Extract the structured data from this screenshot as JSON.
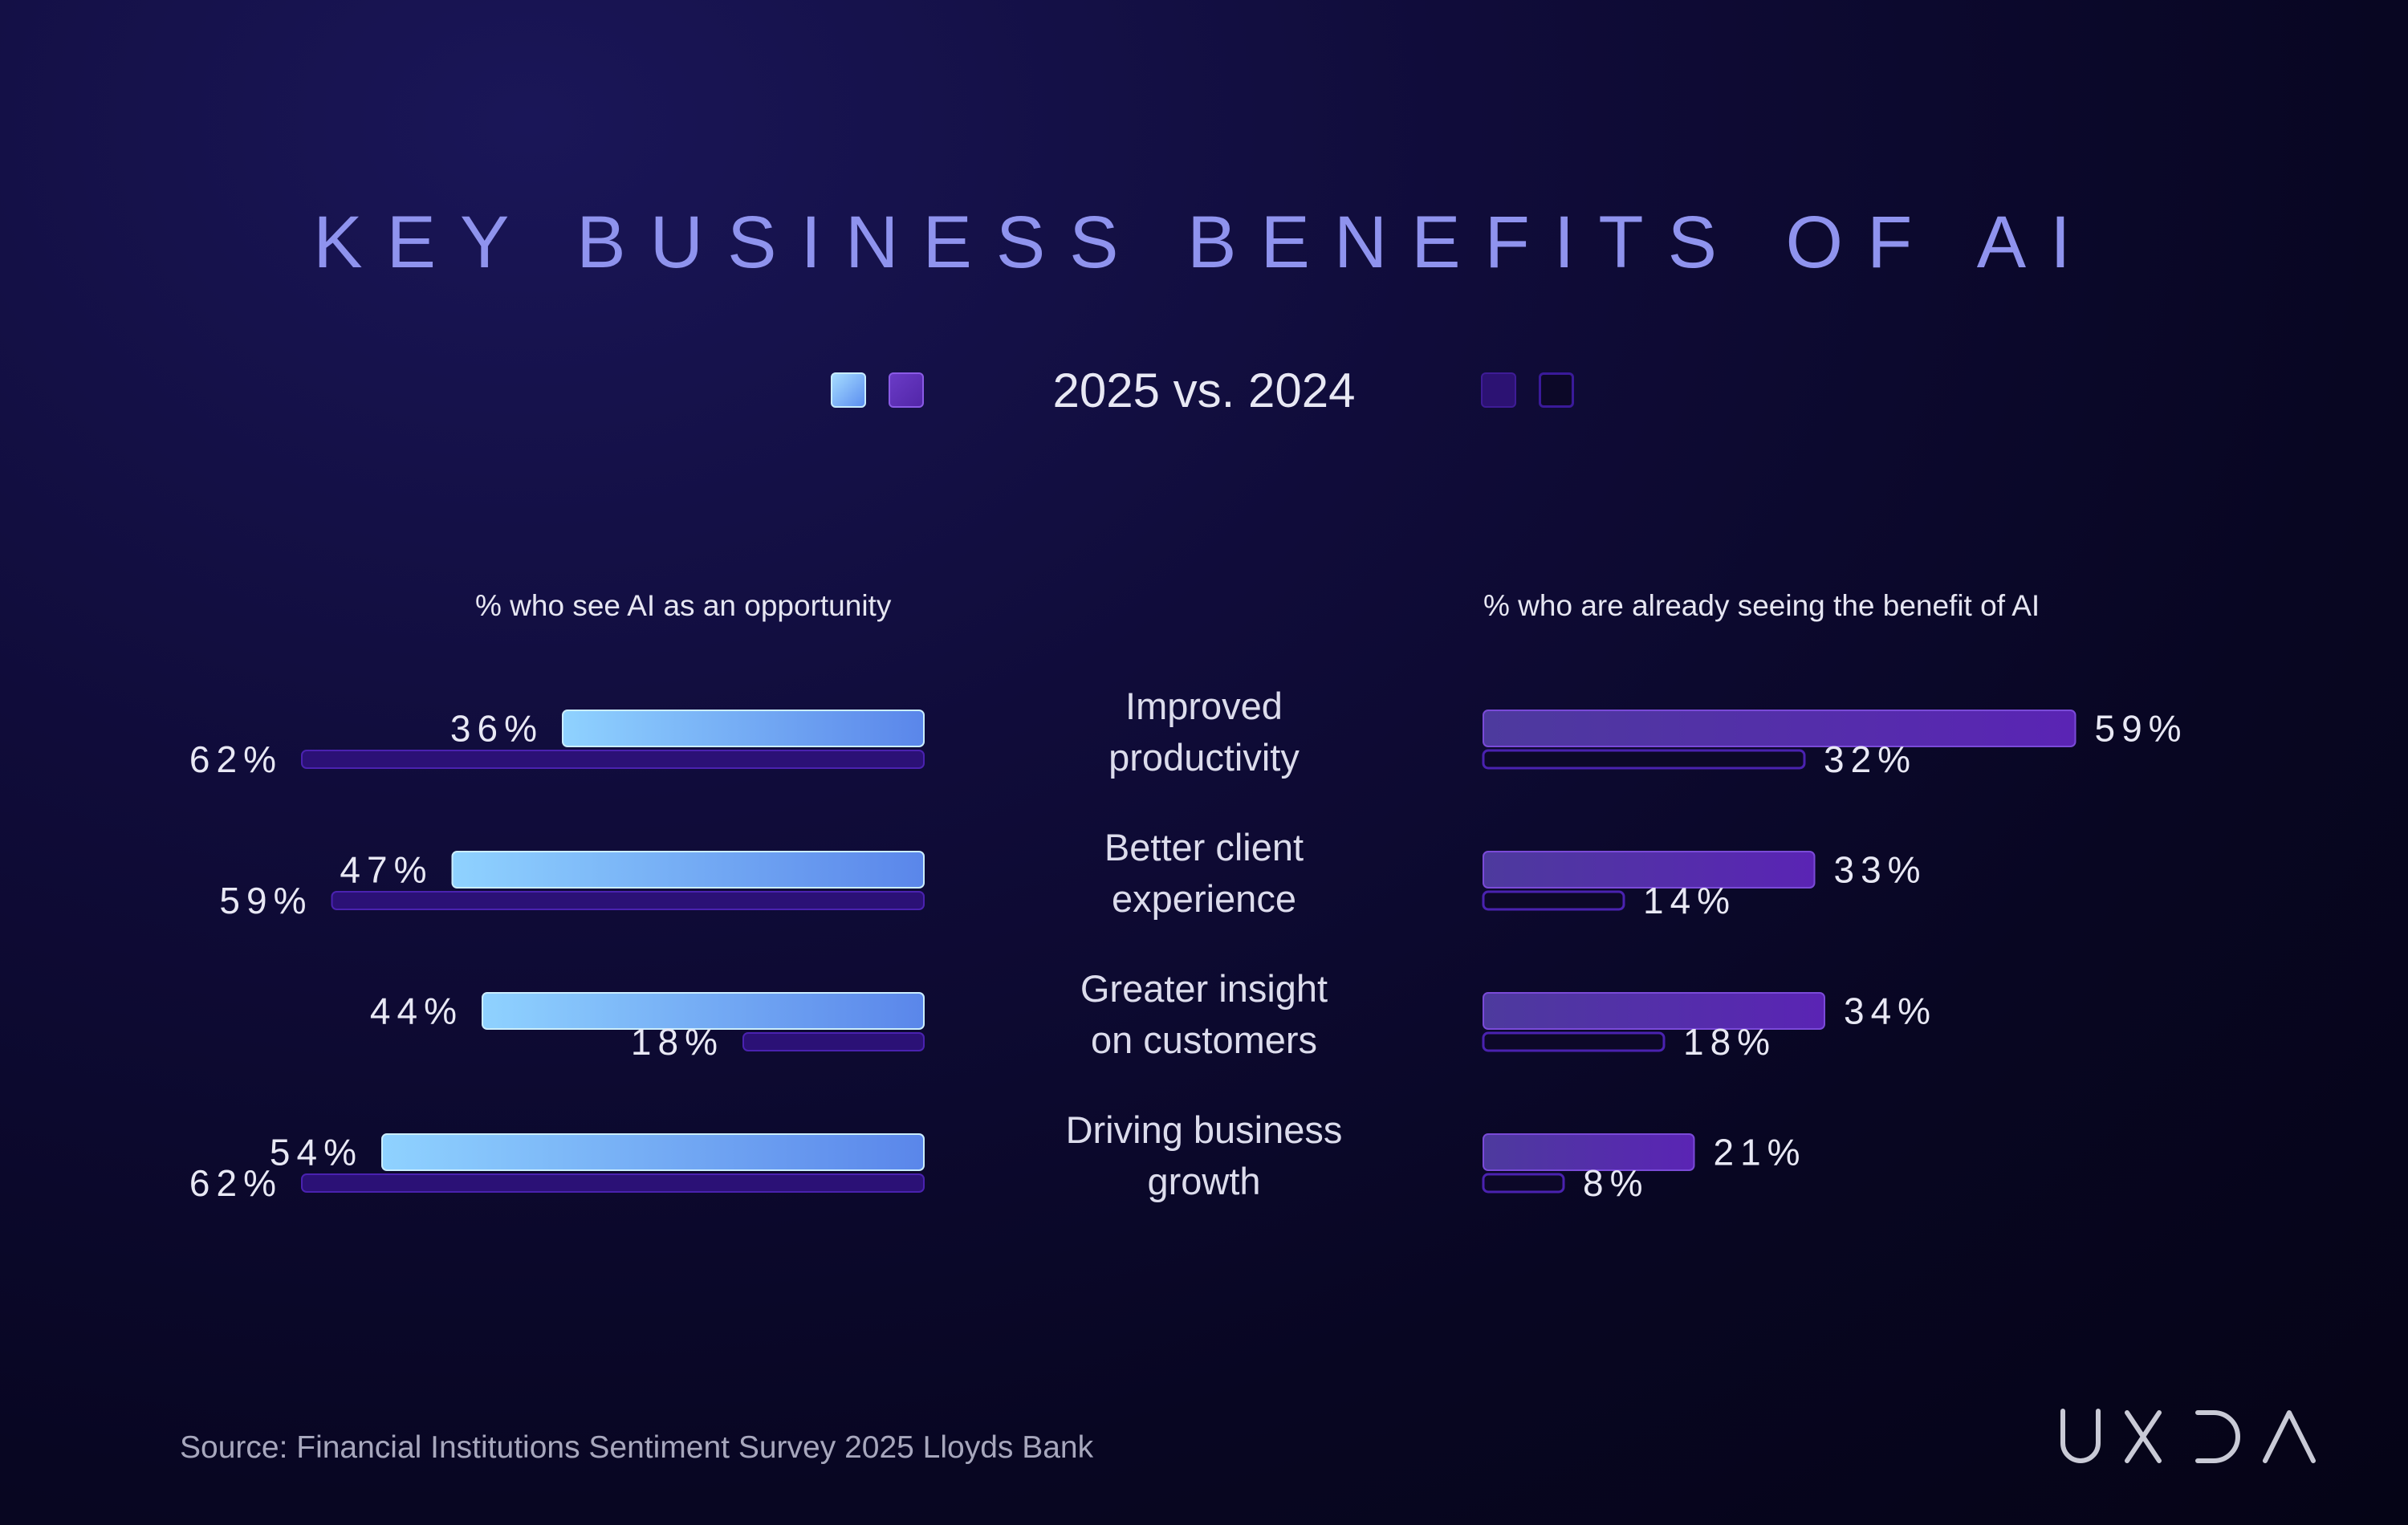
{
  "title": "KEY BUSINESS BENEFITS OF AI",
  "subtitle": "2025 vs. 2024",
  "source": "Source: Financial Institutions Sentiment Survey 2025 Lloyds Bank",
  "logo": "UXDA",
  "colors": {
    "opportunity_2025": "#6ab7f6",
    "opportunity_2024": "#3a1a8a",
    "benefit_2025": "#5a2bb3",
    "benefit_2024": "#2a0f6a"
  },
  "chart_data": [
    {
      "type": "bar",
      "orientation": "horizontal",
      "title": "% who see AI as an opportunity",
      "categories": [
        "Improved\nproductivity",
        "Better client\nexperience",
        "Greater insight\non customers",
        "Driving business\ngrowth"
      ],
      "series": [
        {
          "name": "2025",
          "values": [
            36,
            47,
            44,
            54
          ],
          "labels": [
            "36%",
            "47%",
            "44%",
            "54%"
          ]
        },
        {
          "name": "2024",
          "values": [
            62,
            59,
            18,
            62
          ],
          "labels": [
            "62%",
            "59%",
            "18%",
            "62%"
          ]
        }
      ],
      "xlim": [
        0,
        100
      ]
    },
    {
      "type": "bar",
      "orientation": "horizontal",
      "title": "% who are already seeing the benefit of AI",
      "categories": [
        "Improved\nproductivity",
        "Better client\nexperience",
        "Greater insight\non customers",
        "Driving business\ngrowth"
      ],
      "series": [
        {
          "name": "2025",
          "values": [
            59,
            33,
            34,
            21
          ],
          "labels": [
            "59%",
            "33%",
            "34%",
            "21%"
          ]
        },
        {
          "name": "2024",
          "values": [
            32,
            14,
            18,
            8
          ],
          "labels": [
            "32%",
            "14%",
            "18%",
            "8%"
          ]
        }
      ],
      "xlim": [
        0,
        100
      ]
    }
  ]
}
